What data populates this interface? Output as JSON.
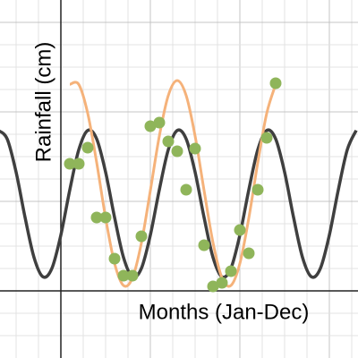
{
  "chart_data": {
    "type": "scatter",
    "x_label": "Months (Jan-Dec)",
    "y_label": "Rainfall (cm)",
    "xlim": [
      -6.8,
      33.2
    ],
    "ylim": [
      -7.5,
      32.5
    ],
    "xticks": [
      -5,
      -2.5,
      0,
      2.5,
      5,
      7.5,
      10,
      12.5,
      15,
      17.5,
      20,
      22.5,
      25,
      27.5,
      30,
      32.5
    ],
    "yticks": [
      -5,
      -2.5,
      0,
      2.5,
      5,
      7.5,
      10,
      12.5,
      15,
      17.5,
      20,
      22.5,
      25,
      27.5,
      30
    ],
    "grid": true,
    "series": [
      {
        "type": "line",
        "color": "#3f3f3f",
        "x": [
          -7,
          -6,
          -5,
          -4,
          -3,
          -2,
          -1,
          0,
          1,
          2,
          3,
          4,
          5,
          6,
          7,
          8,
          9,
          10,
          11,
          12,
          13,
          14,
          15,
          16,
          17,
          18,
          19,
          20,
          21,
          22,
          23,
          24,
          25,
          26,
          27,
          28,
          29,
          30,
          31,
          32,
          33
        ],
        "values": [
          17.93,
          16.98,
          13.26,
          8.21,
          3.74,
          1.57,
          2.52,
          6.24,
          11.29,
          15.76,
          17.93,
          16.98,
          13.26,
          8.21,
          3.74,
          1.57,
          2.52,
          6.24,
          11.29,
          15.76,
          17.93,
          16.98,
          13.26,
          8.21,
          3.74,
          1.57,
          2.52,
          6.24,
          11.29,
          15.76,
          17.93,
          16.98,
          13.26,
          8.21,
          3.74,
          1.57,
          2.52,
          6.24,
          11.29,
          15.76,
          17.93
        ]
      },
      {
        "type": "line",
        "color": "#f5b27a",
        "x": [
          1,
          2,
          3,
          4,
          5,
          6,
          7,
          8,
          9,
          10,
          11,
          12,
          13,
          14,
          15,
          16,
          17,
          18,
          19,
          20,
          21,
          22,
          23,
          24
        ],
        "values": [
          23.07,
          23.07,
          19.84,
          14.35,
          8.15,
          3.08,
          0.6,
          1.45,
          5.36,
          11.21,
          17.28,
          21.82,
          23.5,
          21.83,
          17.3,
          11.23,
          5.38,
          1.46,
          0.6,
          3.06,
          8.14,
          14.32,
          19.83,
          23.06
        ]
      },
      {
        "type": "scatter",
        "color": "#8fb55a",
        "x": [
          1,
          2,
          3,
          4,
          5,
          6,
          7,
          8,
          9,
          10,
          11,
          12,
          13,
          14,
          15,
          16,
          17,
          18,
          19,
          20,
          21,
          22,
          23,
          24
        ],
        "values": [
          14.2,
          14.2,
          16,
          8.2,
          8.2,
          3.6,
          1.7,
          1.7,
          6.1,
          18.4,
          18.8,
          16.7,
          15.6,
          11.3,
          15.9,
          5.1,
          0.5,
          0.9,
          2.2,
          6.8,
          4.2,
          11.3,
          17.1,
          23.2
        ]
      }
    ]
  }
}
